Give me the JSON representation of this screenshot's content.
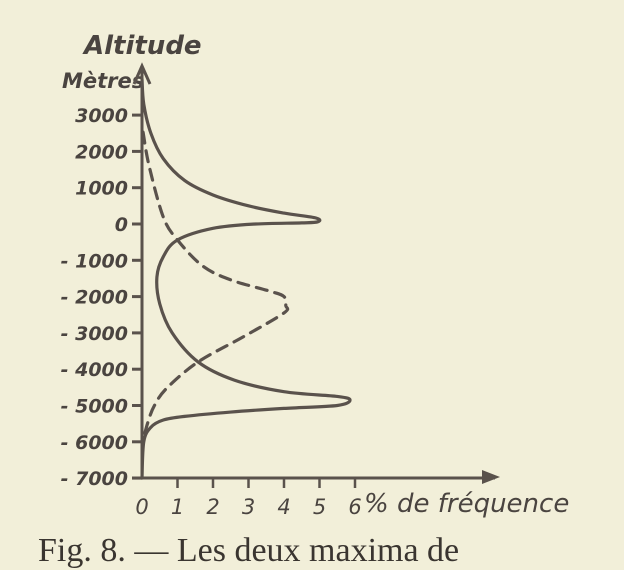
{
  "chart_data": {
    "type": "line",
    "title": "Altitude",
    "ylabel": "Mètres",
    "xlabel": "% de fréquence",
    "xlim": [
      0,
      6
    ],
    "ylim": [
      -7000,
      3000
    ],
    "x_ticks": [
      "0",
      "1",
      "2",
      "3",
      "4",
      "5",
      "6"
    ],
    "y_ticks": [
      {
        "v": 3000,
        "label": "3000"
      },
      {
        "v": 2000,
        "label": "2000"
      },
      {
        "v": 1000,
        "label": "1000"
      },
      {
        "v": 0,
        "label": "0"
      },
      {
        "v": -1000,
        "label": "- 1000"
      },
      {
        "v": -2000,
        "label": "- 2000"
      },
      {
        "v": -3000,
        "label": "- 3000"
      },
      {
        "v": -4000,
        "label": "- 4000"
      },
      {
        "v": -5000,
        "label": "- 5000"
      },
      {
        "v": -6000,
        "label": "- 6000"
      },
      {
        "v": -7000,
        "label": "- 7000"
      }
    ],
    "grid": false,
    "series": [
      {
        "style": "solid",
        "color": "#5a524c",
        "points": [
          [
            0,
            4000
          ],
          [
            0.05,
            3300
          ],
          [
            0.25,
            2500
          ],
          [
            0.6,
            1800
          ],
          [
            1.2,
            1200
          ],
          [
            2.0,
            800
          ],
          [
            3.0,
            500
          ],
          [
            4.0,
            300
          ],
          [
            4.9,
            165
          ],
          [
            4.95,
            60
          ],
          [
            4.5,
            30
          ],
          [
            3.2,
            0
          ],
          [
            2.0,
            -120
          ],
          [
            1.0,
            -440
          ],
          [
            0.6,
            -900
          ],
          [
            0.42,
            -1460
          ],
          [
            0.5,
            -2200
          ],
          [
            0.85,
            -3000
          ],
          [
            1.58,
            -3800
          ],
          [
            2.6,
            -4300
          ],
          [
            4.0,
            -4620
          ],
          [
            5.5,
            -4750
          ],
          [
            5.86,
            -4850
          ],
          [
            5.5,
            -5000
          ],
          [
            4.0,
            -5080
          ],
          [
            2.5,
            -5180
          ],
          [
            1.2,
            -5300
          ],
          [
            0.6,
            -5400
          ],
          [
            0.25,
            -5600
          ],
          [
            0.05,
            -6000
          ],
          [
            0,
            -7000
          ]
        ]
      },
      {
        "style": "dashed",
        "color": "#5a524c",
        "points": [
          [
            0.03,
            2530
          ],
          [
            0.2,
            1600
          ],
          [
            0.6,
            190
          ],
          [
            1.0,
            -440
          ],
          [
            1.7,
            -1150
          ],
          [
            2.5,
            -1540
          ],
          [
            3.6,
            -1850
          ],
          [
            4.0,
            -2000
          ],
          [
            4.05,
            -2250
          ],
          [
            4.0,
            -2450
          ],
          [
            2.85,
            -3110
          ],
          [
            1.58,
            -3800
          ],
          [
            0.7,
            -4520
          ],
          [
            0.35,
            -5000
          ],
          [
            0.17,
            -5450
          ],
          [
            0.03,
            -5950
          ]
        ]
      }
    ]
  },
  "caption": "Fig. 8. — Les deux maxima de"
}
